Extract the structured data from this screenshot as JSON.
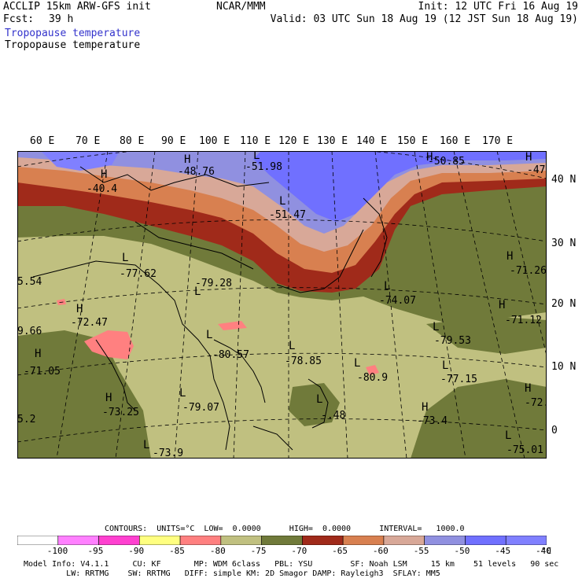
{
  "header": {
    "model": "ACCLIP 15km ARW-GFS init",
    "fcst_label": "Fcst:",
    "fcst_value": "39 h",
    "center": "NCAR/MMM",
    "init": "Init: 12 UTC Fri 16 Aug 19",
    "valid": "Valid: 03 UTC Sun 18 Aug 19 (12 JST Sun 18 Aug 19)",
    "field1": "Tropopause temperature",
    "field2": "Tropopause temperature"
  },
  "map": {
    "lon_labels": [
      "60 E",
      "70 E",
      "80 E",
      "90 E",
      "100 E",
      "110 E",
      "120 E",
      "130 E",
      "140 E",
      "150 E",
      "160 E",
      "170 E"
    ],
    "lat_labels": [
      "40 N",
      "30 N",
      "20 N",
      "10 N",
      "0"
    ],
    "extremes": [
      {
        "type": "H",
        "value": "-40.4"
      },
      {
        "type": "H",
        "value": "-48.76"
      },
      {
        "type": "L",
        "value": "-51.98"
      },
      {
        "type": "L",
        "value": "-51.47"
      },
      {
        "type": "H",
        "value": "-50.85"
      },
      {
        "type": "H",
        "value": "-47"
      },
      {
        "type": "L",
        "value": "-77.62"
      },
      {
        "type": "L",
        "value": "-79.28"
      },
      {
        "type": "H",
        "value": "-72.47"
      },
      {
        "type": "L",
        "value": "-80.57"
      },
      {
        "type": "L",
        "value": "-78.85"
      },
      {
        "type": "L",
        "value": "-80.9"
      },
      {
        "type": "L",
        "value": "-79.53"
      },
      {
        "type": "L",
        "value": "-77.15"
      },
      {
        "type": "L",
        "value": "-74.07"
      },
      {
        "type": "H",
        "value": "-71.26"
      },
      {
        "type": "H",
        "value": "-71.12"
      },
      {
        "type": "H",
        "value": "-71.05"
      },
      {
        "type": "H",
        "value": "-73.25"
      },
      {
        "type": "L",
        "value": "-79.07"
      },
      {
        "type": "L",
        "value": "-73.9"
      },
      {
        "type": "H",
        "value": "-73.4"
      },
      {
        "type": "L",
        "value": "-75.01"
      },
      {
        "type": "H",
        "value": "-72."
      },
      {
        "type": "L",
        "value": "-.48"
      },
      {
        "type": "H",
        "value": "5.54"
      },
      {
        "type": "H",
        "value": "9.66"
      },
      {
        "type": "H",
        "value": "5.2"
      }
    ]
  },
  "legend": {
    "contours": "CONTOURS:  UNITS=°C  LOW=  0.0000      HIGH=  0.0000      INTERVAL=   1000.0",
    "unit": "°C",
    "ticks": [
      "-100",
      "-95",
      "-90",
      "-85",
      "-80",
      "-75",
      "-70",
      "-65",
      "-60",
      "-55",
      "-50",
      "-45",
      "-40"
    ],
    "colors": [
      "#ffffff",
      "#ff80ff",
      "#ff40d0",
      "#ffff80",
      "#ff8080",
      "#c0c080",
      "#707a3a",
      "#a02a1a",
      "#d88050",
      "#d8a898",
      "#9090e0",
      "#7070ff",
      "#8080ff"
    ]
  },
  "footer": {
    "line1": "Model Info: V4.1.1     CU: KF       MP: WDM 6class   PBL: YSU        SF: Noah LSM     15 km    51 levels   90 sec",
    "line2": "         LW: RRTMG    SW: RRTMG   DIFF: simple KM: 2D Smagor DAMP: Rayleigh3  SFLAY: MM5"
  }
}
